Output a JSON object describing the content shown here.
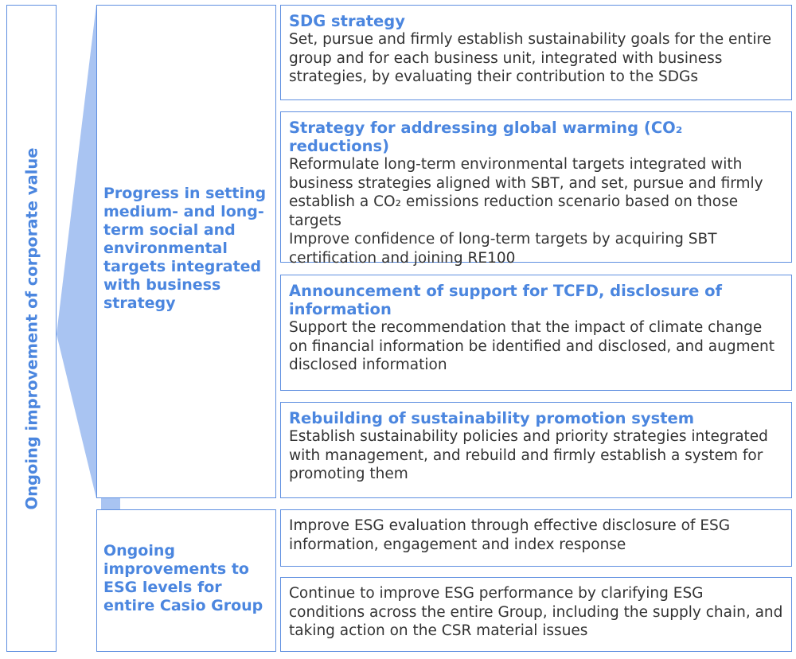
{
  "left_label": "Ongoing improvement of corporate value",
  "middle": [
    {
      "label": "Progress in setting medium- and long-term social and environmental targets integrated with business strategy"
    },
    {
      "label": "Ongoing improvements to ESG levels for entire Casio Group"
    }
  ],
  "right": [
    {
      "title": "SDG strategy",
      "body": "Set, pursue and firmly establish sustainability goals for the entire group and for each business unit, integrated with business strategies, by evaluating their contribution to the SDGs"
    },
    {
      "title": "Strategy for addressing global warming (CO₂ reductions)",
      "body": "Reformulate long-term environmental targets integrated with business strategies aligned with SBT, and set, pursue and firmly establish a CO₂ emissions reduction scenario based on those targets",
      "body2": "Improve confidence of long-term targets by acquiring SBT certification and joining RE100"
    },
    {
      "title": "Announcement of support for TCFD, disclosure of information",
      "body": "Support the recommendation that the impact of climate change on financial information be identified and disclosed, and augment disclosed information"
    },
    {
      "title": "Rebuilding of sustainability promotion system",
      "body": "Establish sustainability policies and priority strategies integrated with management, and rebuild and firmly establish a system for promoting them"
    },
    {
      "body": "Improve ESG evaluation through effective disclosure of ESG information, engagement and index response"
    },
    {
      "body": "Continue to improve ESG performance by clarifying ESG conditions across the entire Group, including the supply chain, and taking action on the CSR material issues"
    }
  ],
  "colors": {
    "accent": "#4b86df",
    "border": "#5f8fe0",
    "connector": "#a9c4f2",
    "text": "#333333"
  }
}
